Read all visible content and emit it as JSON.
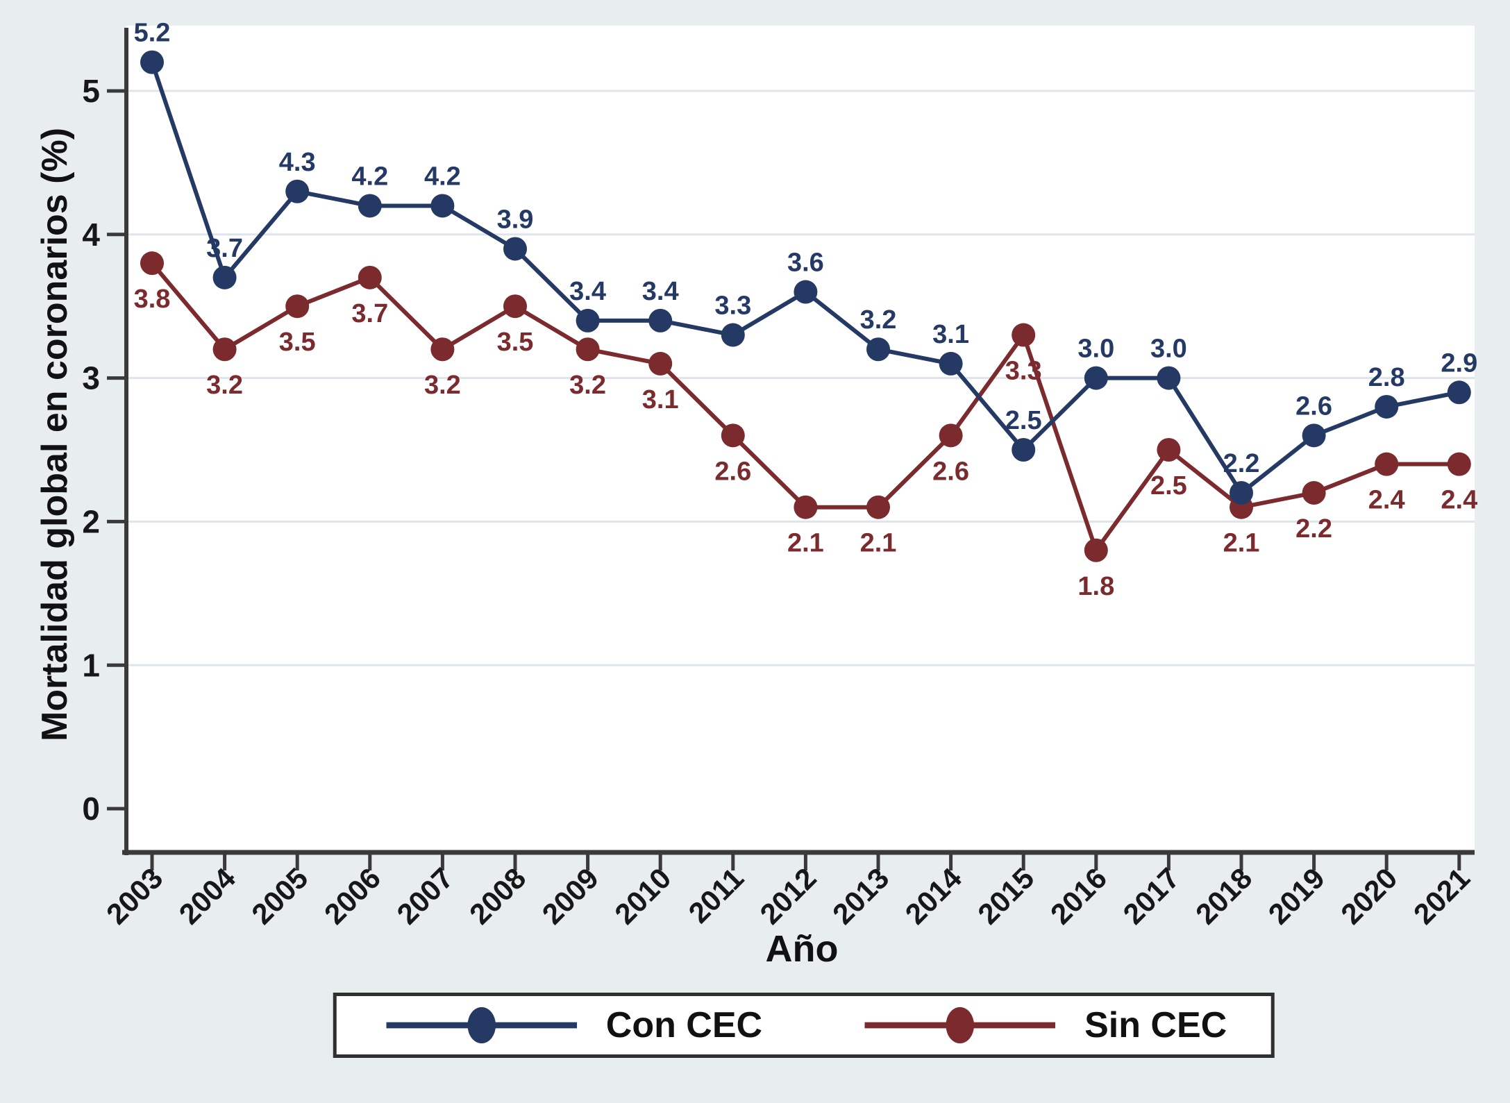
{
  "page": {
    "background_color": "#e8edf0",
    "plot_background_color": "#ffffff"
  },
  "chart_data": {
    "type": "line",
    "title": "",
    "xlabel": "Año",
    "ylabel": "Mortalidad global en coronarios (%)",
    "x": [
      2003,
      2004,
      2005,
      2006,
      2007,
      2008,
      2009,
      2010,
      2011,
      2012,
      2013,
      2014,
      2015,
      2016,
      2017,
      2018,
      2019,
      2020,
      2021
    ],
    "yticks": [
      0,
      1,
      2,
      3,
      4,
      5
    ],
    "ylim": [
      0,
      5.45
    ],
    "grid": "horizontal-light",
    "gridline_color": "#dde5ea",
    "axis_color": "#3a3a3a",
    "tick_label_color": "#171717",
    "legend_position": "bottom-center-boxed",
    "point_labels": true,
    "series": [
      {
        "name": "Con CEC",
        "color": "#243a64",
        "label_side": "above",
        "values": [
          5.2,
          3.7,
          4.3,
          4.2,
          4.2,
          3.9,
          3.4,
          3.4,
          3.3,
          3.6,
          3.2,
          3.1,
          2.5,
          3.0,
          3.0,
          2.2,
          2.6,
          2.8,
          2.9
        ]
      },
      {
        "name": "Sin CEC",
        "color": "#7b2a2e",
        "label_side": "below",
        "values": [
          3.8,
          3.2,
          3.5,
          3.7,
          3.2,
          3.5,
          3.2,
          3.1,
          2.6,
          2.1,
          2.1,
          2.6,
          3.3,
          1.8,
          2.5,
          2.1,
          2.2,
          2.4,
          2.4
        ]
      }
    ]
  }
}
